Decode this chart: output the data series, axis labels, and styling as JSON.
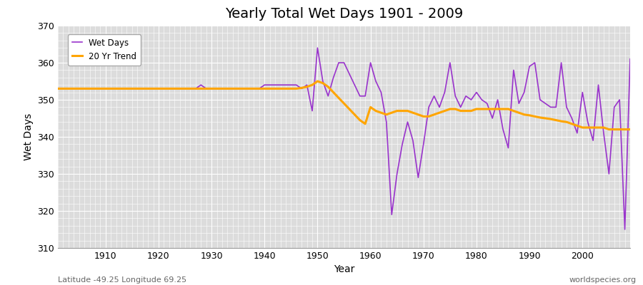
{
  "title": "Yearly Total Wet Days 1901 - 2009",
  "xlabel": "Year",
  "ylabel": "Wet Days",
  "subtitle": "Latitude -49.25 Longitude 69.25",
  "watermark": "worldspecies.org",
  "wet_days_color": "#9933CC",
  "trend_color": "#FFA500",
  "background_color": "#DCDCDC",
  "grid_color": "#FFFFFF",
  "ylim": [
    310,
    370
  ],
  "xlim": [
    1901,
    2009
  ],
  "years": [
    1901,
    1902,
    1903,
    1904,
    1905,
    1906,
    1907,
    1908,
    1909,
    1910,
    1911,
    1912,
    1913,
    1914,
    1915,
    1916,
    1917,
    1918,
    1919,
    1920,
    1921,
    1922,
    1923,
    1924,
    1925,
    1926,
    1927,
    1928,
    1929,
    1930,
    1931,
    1932,
    1933,
    1934,
    1935,
    1936,
    1937,
    1938,
    1939,
    1940,
    1941,
    1942,
    1943,
    1944,
    1945,
    1946,
    1947,
    1948,
    1949,
    1950,
    1951,
    1952,
    1953,
    1954,
    1955,
    1956,
    1957,
    1958,
    1959,
    1960,
    1961,
    1962,
    1963,
    1964,
    1965,
    1966,
    1967,
    1968,
    1969,
    1970,
    1971,
    1972,
    1973,
    1974,
    1975,
    1976,
    1977,
    1978,
    1979,
    1980,
    1981,
    1982,
    1983,
    1984,
    1985,
    1986,
    1987,
    1988,
    1989,
    1990,
    1991,
    1992,
    1993,
    1994,
    1995,
    1996,
    1997,
    1998,
    1999,
    2000,
    2001,
    2002,
    2003,
    2004,
    2005,
    2006,
    2007,
    2008,
    2009
  ],
  "wet_days": [
    353,
    353,
    353,
    353,
    353,
    353,
    353,
    353,
    353,
    353,
    353,
    353,
    353,
    353,
    353,
    353,
    353,
    353,
    353,
    353,
    353,
    353,
    353,
    353,
    353,
    353,
    353,
    354,
    353,
    353,
    353,
    353,
    353,
    353,
    353,
    353,
    353,
    353,
    353,
    354,
    354,
    354,
    354,
    354,
    354,
    354,
    353,
    354,
    347,
    364,
    355,
    351,
    356,
    360,
    360,
    357,
    354,
    351,
    351,
    360,
    355,
    352,
    344,
    319,
    330,
    338,
    344,
    339,
    329,
    338,
    348,
    351,
    348,
    352,
    360,
    351,
    348,
    351,
    350,
    352,
    350,
    349,
    345,
    350,
    342,
    337,
    358,
    349,
    352,
    359,
    360,
    350,
    349,
    348,
    348,
    360,
    348,
    345,
    341,
    352,
    344,
    339,
    354,
    341,
    330,
    348,
    350,
    315,
    361
  ],
  "trend": [
    353.0,
    353.0,
    353.0,
    353.0,
    353.0,
    353.0,
    353.0,
    353.0,
    353.0,
    353.0,
    353.0,
    353.0,
    353.0,
    353.0,
    353.0,
    353.0,
    353.0,
    353.0,
    353.0,
    353.0,
    353.0,
    353.0,
    353.0,
    353.0,
    353.0,
    353.0,
    353.0,
    353.0,
    353.0,
    353.0,
    353.0,
    353.0,
    353.0,
    353.0,
    353.0,
    353.0,
    353.0,
    353.0,
    353.0,
    353.0,
    353.0,
    353.0,
    353.0,
    353.0,
    353.0,
    353.0,
    353.2,
    353.5,
    354.0,
    355.0,
    354.5,
    353.5,
    352.0,
    350.5,
    349.0,
    347.5,
    346.0,
    344.5,
    343.5,
    348.0,
    347.0,
    346.5,
    346.0,
    346.5,
    347.0,
    347.0,
    347.0,
    346.5,
    346.0,
    345.5,
    345.5,
    346.0,
    346.5,
    347.0,
    347.5,
    347.5,
    347.0,
    347.0,
    347.0,
    347.5,
    347.5,
    347.5,
    347.5,
    347.5,
    347.5,
    347.5,
    347.0,
    346.5,
    346.0,
    345.8,
    345.5,
    345.2,
    345.0,
    344.8,
    344.5,
    344.2,
    344.0,
    343.5,
    343.0,
    342.5,
    342.5,
    342.5,
    342.5,
    342.5,
    342.0,
    342.0,
    342.0,
    342.0,
    342.0
  ]
}
